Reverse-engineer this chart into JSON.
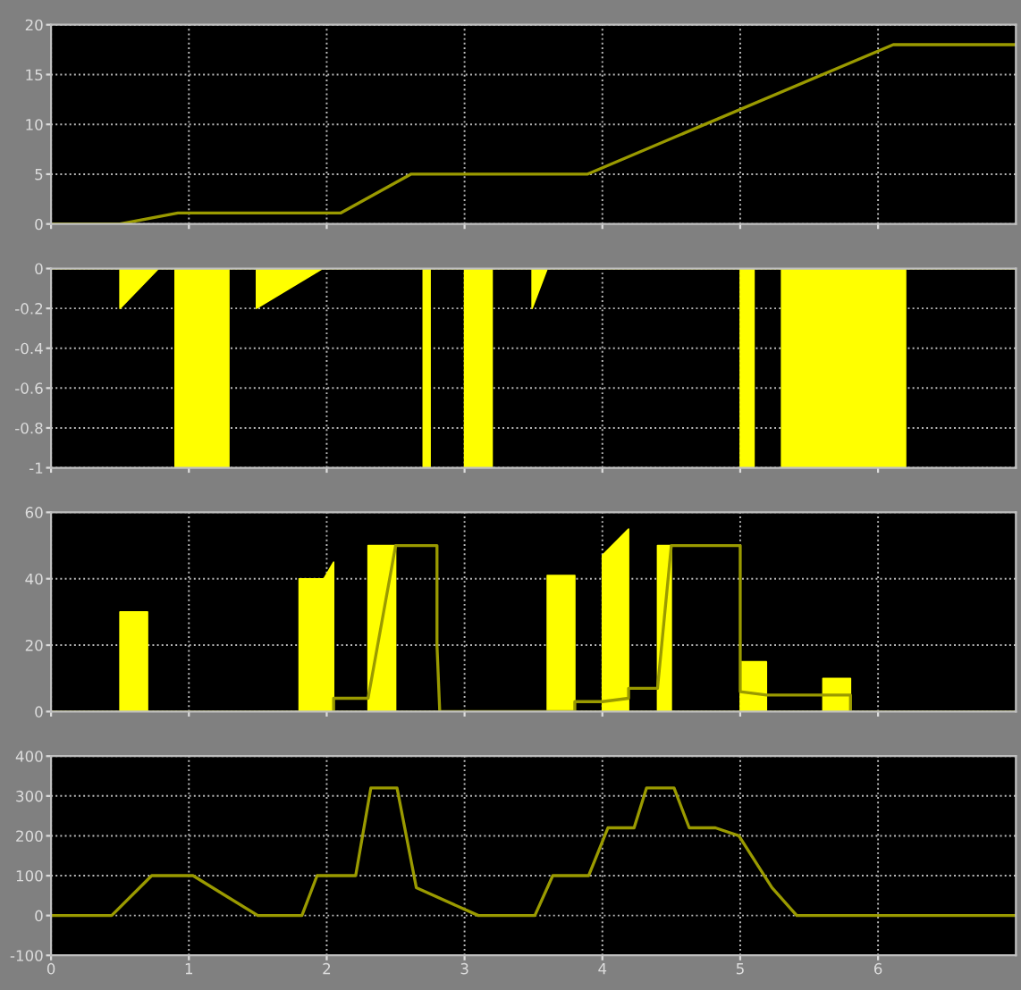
{
  "chart_data": [
    {
      "type": "line",
      "xlim": [
        0,
        7
      ],
      "ylim": [
        0,
        20
      ],
      "xticks": [
        0,
        1,
        2,
        3,
        4,
        5,
        6
      ],
      "yticks": [
        0,
        5,
        10,
        15,
        20
      ],
      "grid": true,
      "tick_labels": "y",
      "series": [
        {
          "color": "#9a9a00",
          "x": [
            0,
            0.5,
            0.92,
            2.1,
            2.61,
            3.89,
            6.11,
            7
          ],
          "values": [
            0,
            0,
            1.1,
            1.1,
            5,
            5,
            18,
            18
          ]
        }
      ]
    },
    {
      "type": "area",
      "xlim": [
        0,
        7
      ],
      "ylim": [
        -1,
        0
      ],
      "xticks": [
        0,
        1,
        2,
        3,
        4,
        5,
        6
      ],
      "yticks": [
        -1,
        -0.8,
        -0.6,
        -0.4,
        -0.2,
        0
      ],
      "grid": true,
      "tick_labels": "y",
      "series": [
        {
          "color": "#ffff00",
          "x": [
            0,
            0.5,
            0.5,
            0.78,
            0.9,
            0.9,
            1.29,
            1.29,
            1.49,
            1.49,
            1.97,
            2.7,
            2.7,
            2.75,
            2.75,
            3.0,
            3.0,
            3.2,
            3.2,
            3.49,
            3.49,
            3.6,
            5.0,
            5.0,
            5.1,
            5.1,
            5.3,
            5.3,
            6.2,
            6.2,
            7
          ],
          "values": [
            0,
            0,
            -0.2,
            0,
            0,
            -1,
            -1,
            0,
            0,
            -0.2,
            0,
            0,
            -1,
            -1,
            0,
            0,
            -1,
            -1,
            0,
            0,
            -0.2,
            0,
            0,
            -1,
            -1,
            0,
            0,
            -1,
            -1,
            0,
            0
          ]
        }
      ]
    },
    {
      "type": "area",
      "xlim": [
        0,
        7
      ],
      "ylim": [
        0,
        60
      ],
      "xticks": [
        0,
        1,
        2,
        3,
        4,
        5,
        6
      ],
      "yticks": [
        0,
        20,
        40,
        60
      ],
      "grid": true,
      "tick_labels": "y",
      "series": [
        {
          "color": "#ffff00",
          "x": [
            0,
            0.5,
            0.5,
            0.7,
            0.7,
            1.8,
            1.8,
            1.98,
            2.05,
            2.05,
            2.3,
            2.3,
            2.5,
            2.5,
            3.6,
            3.6,
            3.8,
            3.8,
            4.0,
            4.0,
            4.19,
            4.19,
            4.4,
            4.4,
            4.5,
            4.5,
            5.0,
            5.0,
            5.19,
            5.19,
            5.6,
            5.6,
            5.8,
            5.8,
            7
          ],
          "values": [
            0,
            0,
            30,
            30,
            0,
            0,
            40,
            40,
            45,
            0,
            0,
            50,
            50,
            0,
            0,
            41,
            41,
            0,
            0,
            47,
            55,
            0,
            0,
            50,
            50,
            0,
            0,
            15,
            15,
            0,
            0,
            10,
            10,
            0,
            0
          ]
        },
        {
          "type": "line",
          "color": "#9a9a00",
          "x": [
            2.05,
            2.05,
            2.3,
            2.5,
            2.8,
            2.8,
            2.82,
            3.8,
            3.8,
            4.0,
            4.19,
            4.19,
            4.4,
            4.5,
            5.0,
            5.0,
            5.19,
            5.6,
            5.8,
            5.8
          ],
          "values": [
            0,
            4,
            4,
            50,
            50,
            20,
            0,
            0,
            3,
            3,
            4,
            7,
            7,
            50,
            50,
            6,
            5,
            5,
            5,
            0
          ]
        }
      ]
    },
    {
      "type": "line",
      "xlim": [
        0,
        7
      ],
      "ylim": [
        -100,
        400
      ],
      "xticks": [
        0,
        1,
        2,
        3,
        4,
        5,
        6
      ],
      "yticks": [
        -100,
        0,
        100,
        200,
        300,
        400
      ],
      "grid": true,
      "series": [
        {
          "color": "#9a9a00",
          "x": [
            0,
            0.44,
            0.73,
            1.03,
            1.5,
            1.82,
            1.93,
            2.21,
            2.32,
            2.51,
            2.65,
            3.1,
            3.51,
            3.64,
            3.9,
            4.04,
            4.23,
            4.32,
            4.52,
            4.63,
            4.82,
            4.99,
            5.23,
            5.41,
            7
          ],
          "values": [
            0,
            0,
            100,
            100,
            0,
            0,
            100,
            100,
            320,
            320,
            70,
            0,
            0,
            100,
            100,
            220,
            220,
            320,
            320,
            220,
            220,
            200,
            70,
            0,
            0
          ]
        }
      ]
    }
  ]
}
